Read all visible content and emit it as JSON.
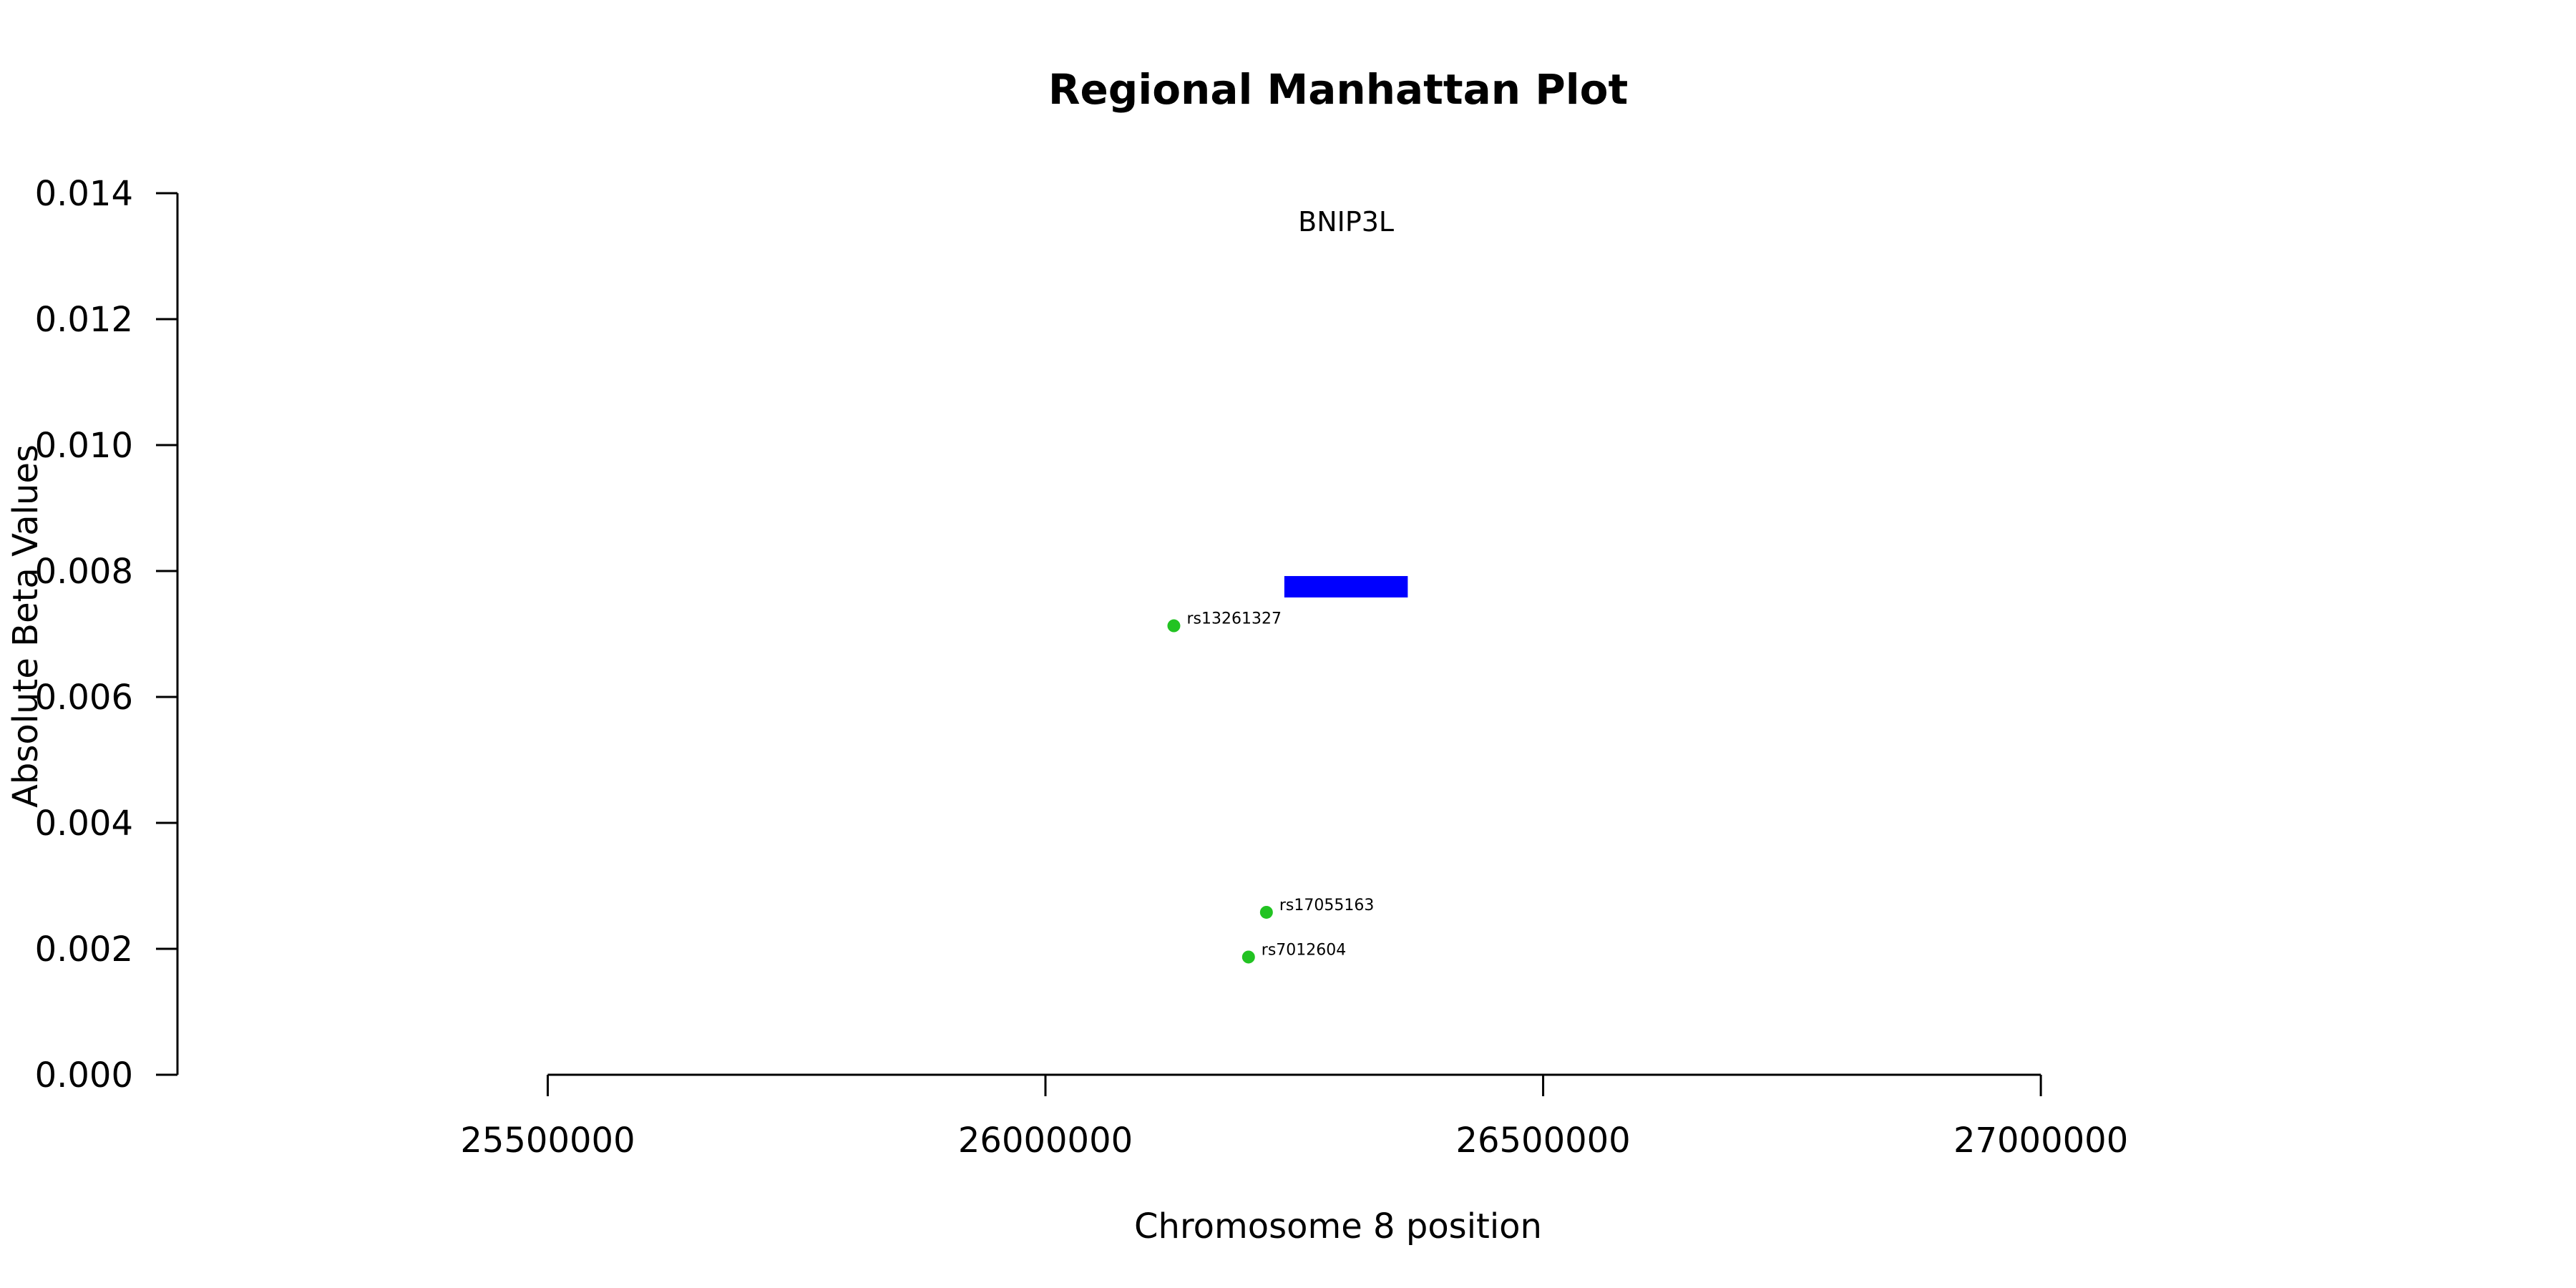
{
  "chart_data": {
    "type": "scatter",
    "title": "Regional Manhattan Plot",
    "xlabel": "Chromosome 8 position",
    "ylabel": "Absolute Beta Values",
    "xlim": [
      25128000,
      27460000
    ],
    "ylim": [
      0.0,
      0.014
    ],
    "x_ticks": [
      25500000,
      26000000,
      26500000,
      27000000
    ],
    "y_ticks": [
      0.0,
      0.002,
      0.004,
      0.006,
      0.008,
      0.01,
      0.012,
      0.014
    ],
    "x_tick_labels": [
      "25500000",
      "26000000",
      "26500000",
      "27000000"
    ],
    "y_tick_labels": [
      "0.000",
      "0.002",
      "0.004",
      "0.006",
      "0.008",
      "0.010",
      "0.012",
      "0.014"
    ],
    "grid": false,
    "legend": null,
    "points": [
      {
        "label": "rs13261327",
        "x": 26129000,
        "y": 0.00713
      },
      {
        "label": "rs17055163",
        "x": 26222000,
        "y": 0.00258
      },
      {
        "label": "rs7012604",
        "x": 26204000,
        "y": 0.00187
      }
    ],
    "point_color": "#22c322",
    "genes": [
      {
        "name": "BNIP3L",
        "start": 26240000,
        "end": 26364000,
        "y_low": 0.00758,
        "y_high": 0.00792,
        "label_y": 0.0134
      }
    ],
    "gene_color": "#0000ff"
  }
}
